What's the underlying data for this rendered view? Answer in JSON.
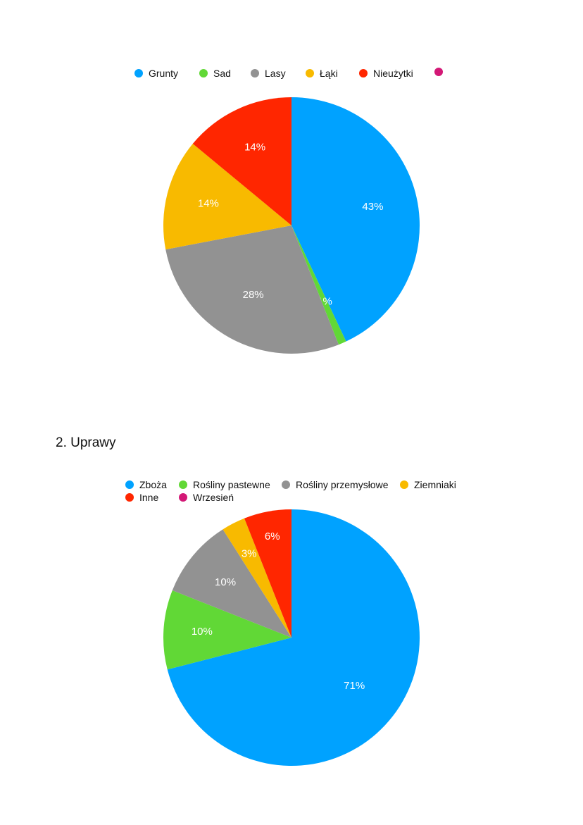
{
  "section": {
    "heading": "2. Uprawy"
  },
  "chart_data": [
    {
      "type": "pie",
      "title": "",
      "legend_placement": "top",
      "categories": [
        "Grunty",
        "Sad",
        "Lasy",
        "Łąki",
        "Nieużytki",
        ""
      ],
      "values": [
        43,
        1,
        28,
        14,
        14,
        0
      ],
      "data_labels": [
        "43%",
        "1%",
        "28%",
        "14%",
        "14%",
        ""
      ],
      "colors": [
        "#00A2FF",
        "#61D836",
        "#929292",
        "#F8BA00",
        "#FF2600",
        "#D31876"
      ]
    },
    {
      "type": "pie",
      "title": "",
      "legend_placement": "top",
      "categories": [
        "Zboża",
        "Rośliny pastewne",
        "Rośliny przemysłowe",
        "Ziemniaki",
        "Inne",
        "Wrzesień"
      ],
      "values": [
        71,
        10,
        10,
        3,
        6,
        0
      ],
      "data_labels": [
        "71%",
        "10%",
        "10%",
        "3%",
        "6%",
        ""
      ],
      "colors": [
        "#00A2FF",
        "#61D836",
        "#929292",
        "#F8BA00",
        "#FF2600",
        "#D31876"
      ]
    }
  ]
}
